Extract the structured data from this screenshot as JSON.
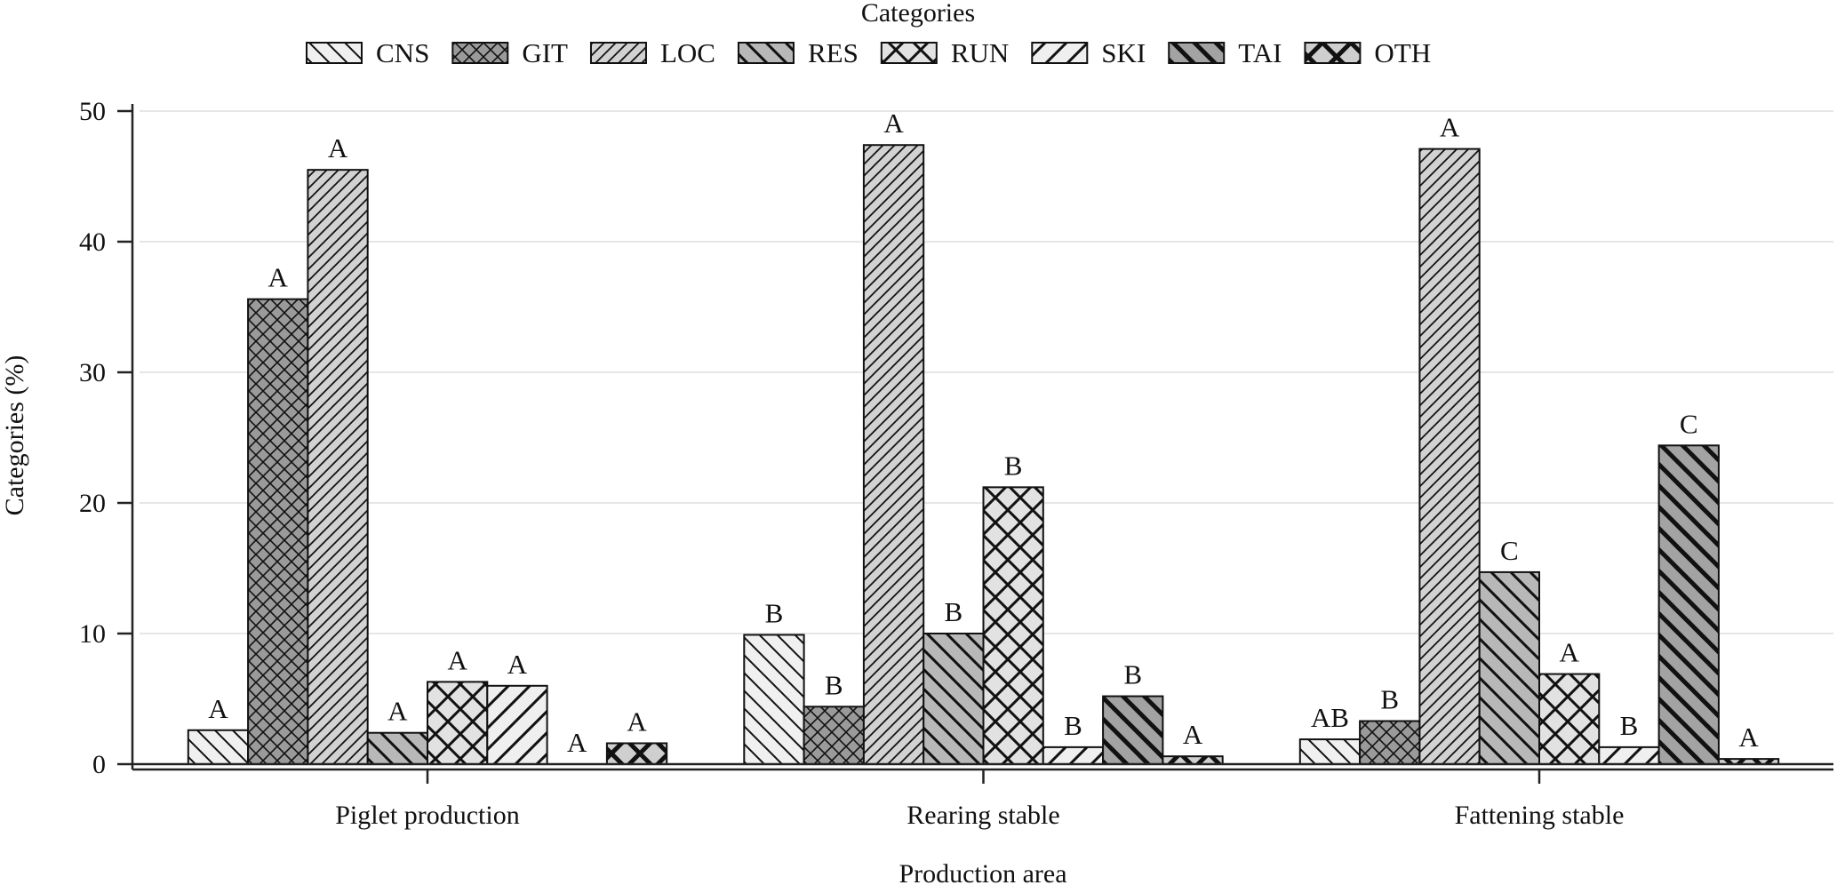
{
  "chart_data": {
    "type": "bar",
    "title": "",
    "legend_title": "Categories",
    "legend_position": "top-center",
    "xlabel": "Production area",
    "ylabel": "Categories (%)",
    "ylim": [
      0,
      50
    ],
    "yticks": [
      0,
      10,
      20,
      30,
      40,
      50
    ],
    "grid": true,
    "categories": [
      "Piglet production",
      "Rearing stable",
      "Fattening stable"
    ],
    "series": [
      {
        "name": "CNS",
        "values": [
          2.6,
          9.9,
          1.9
        ],
        "letters": [
          "A",
          "B",
          "AB"
        ],
        "pattern": "diag-down-thin",
        "fill": "#f0f0f0"
      },
      {
        "name": "GIT",
        "values": [
          35.6,
          4.4,
          3.3
        ],
        "letters": [
          "A",
          "B",
          "B"
        ],
        "pattern": "crosshatch-thin",
        "fill": "#9a9a9a"
      },
      {
        "name": "LOC",
        "values": [
          45.5,
          47.4,
          47.1
        ],
        "letters": [
          "A",
          "A",
          "A"
        ],
        "pattern": "diag-up-thin",
        "fill": "#d2d2d2"
      },
      {
        "name": "RES",
        "values": [
          2.4,
          10.0,
          14.7
        ],
        "letters": [
          "A",
          "B",
          "C"
        ],
        "pattern": "diag-down-medium",
        "fill": "#b8b8b8"
      },
      {
        "name": "RUN",
        "values": [
          6.3,
          21.2,
          6.9
        ],
        "letters": [
          "A",
          "B",
          "A"
        ],
        "pattern": "crosshatch-thick",
        "fill": "#e2e2e2"
      },
      {
        "name": "SKI",
        "values": [
          6.0,
          1.3,
          1.3
        ],
        "letters": [
          "A",
          "B",
          "B"
        ],
        "pattern": "diag-up-wide",
        "fill": "#efefef"
      },
      {
        "name": "TAI",
        "values": [
          0.0,
          5.2,
          24.4
        ],
        "letters": [
          "A",
          "B",
          "C"
        ],
        "pattern": "diag-down-thick",
        "fill": "#a3a3a3"
      },
      {
        "name": "OTH",
        "values": [
          1.6,
          0.6,
          0.4
        ],
        "letters": [
          "A",
          "A",
          "A"
        ],
        "pattern": "crosshatch-heavy",
        "fill": "#cfcfcf"
      }
    ]
  }
}
